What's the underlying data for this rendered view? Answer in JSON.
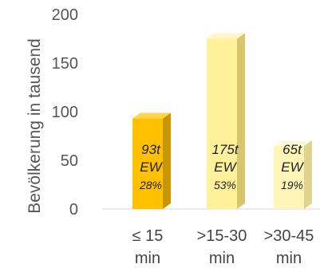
{
  "chart_data": {
    "type": "bar",
    "title": "",
    "xlabel": "",
    "ylabel": "Bevölkerung in tausend",
    "ylim": [
      0,
      200
    ],
    "yticks": [
      0,
      50,
      100,
      150,
      200
    ],
    "grid": false,
    "categories": [
      {
        "line1": "≤ 15",
        "line2": "min"
      },
      {
        "line1": ">15-30",
        "line2": "min"
      },
      {
        "line1": ">30-45",
        "line2": "min"
      }
    ],
    "values": [
      93,
      175,
      65
    ],
    "data_labels": [
      {
        "value": "93t",
        "unit": "EW",
        "share": "28%"
      },
      {
        "value": "175t",
        "unit": "EW",
        "share": "53%"
      },
      {
        "value": "65t",
        "unit": "EW",
        "share": "19%"
      }
    ],
    "colors": [
      {
        "front": "#ffc000",
        "side": "#c99500",
        "top": "#ffd54d"
      },
      {
        "front": "#fff09a",
        "side": "#d9c66c",
        "top": "#fff7c9"
      },
      {
        "front": "#fff5b6",
        "side": "#e0d390",
        "top": "#fffbe0"
      }
    ]
  }
}
